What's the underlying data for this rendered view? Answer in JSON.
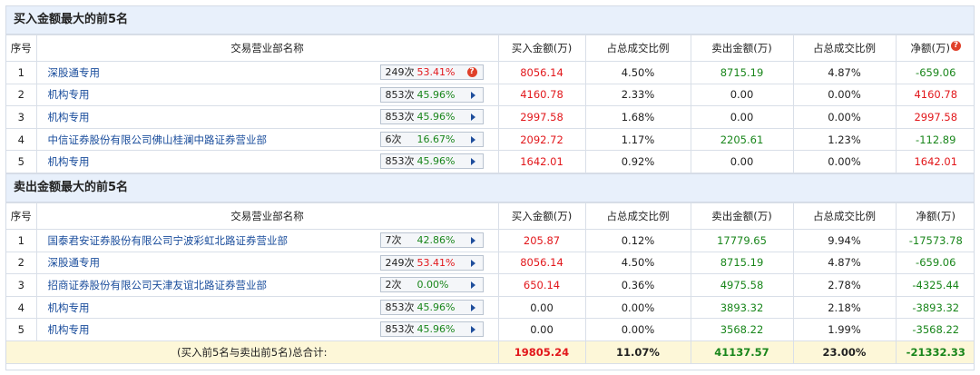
{
  "buy_section": {
    "title": "买入金额最大的前5名",
    "headers": [
      "序号",
      "交易营业部名称",
      "买入金额(万)",
      "占总成交比例",
      "卖出金额(万)",
      "占总成交比例",
      "净额(万)"
    ],
    "rows": [
      {
        "idx": "1",
        "name": "深股通专用",
        "count": "249次",
        "pct": "53.41%",
        "pct_color": "red",
        "question": "?",
        "buy": "8056.14",
        "buy_ratio": "4.50%",
        "sell": "8715.19",
        "sell_ratio": "4.87%",
        "net": "-659.06",
        "net_color": "green"
      },
      {
        "idx": "2",
        "name": "机构专用",
        "count": "853次",
        "pct": "45.96%",
        "pct_color": "green",
        "buy": "4160.78",
        "buy_ratio": "2.33%",
        "sell": "0.00",
        "sell_ratio": "0.00%",
        "net": "4160.78",
        "net_color": "red"
      },
      {
        "idx": "3",
        "name": "机构专用",
        "count": "853次",
        "pct": "45.96%",
        "pct_color": "green",
        "buy": "2997.58",
        "buy_ratio": "1.68%",
        "sell": "0.00",
        "sell_ratio": "0.00%",
        "net": "2997.58",
        "net_color": "red"
      },
      {
        "idx": "4",
        "name": "中信证券股份有限公司佛山桂澜中路证券营业部",
        "count": "6次",
        "pct": "16.67%",
        "pct_color": "green",
        "buy": "2092.72",
        "buy_ratio": "1.17%",
        "sell": "2205.61",
        "sell_ratio": "1.23%",
        "net": "-112.89",
        "net_color": "green"
      },
      {
        "idx": "5",
        "name": "机构专用",
        "count": "853次",
        "pct": "45.96%",
        "pct_color": "green",
        "buy": "1642.01",
        "buy_ratio": "0.92%",
        "sell": "0.00",
        "sell_ratio": "0.00%",
        "net": "1642.01",
        "net_color": "red"
      }
    ]
  },
  "sell_section": {
    "title": "卖出金额最大的前5名",
    "headers": [
      "序号",
      "交易营业部名称",
      "买入金额(万)",
      "占总成交比例",
      "卖出金额(万)",
      "占总成交比例",
      "净额(万)"
    ],
    "rows": [
      {
        "idx": "1",
        "name": "国泰君安证券股份有限公司宁波彩虹北路证券营业部",
        "count": "7次",
        "pct": "42.86%",
        "pct_color": "green",
        "buy": "205.87",
        "buy_ratio": "0.12%",
        "sell": "17779.65",
        "sell_ratio": "9.94%",
        "net": "-17573.78",
        "net_color": "green"
      },
      {
        "idx": "2",
        "name": "深股通专用",
        "count": "249次",
        "pct": "53.41%",
        "pct_color": "red",
        "buy": "8056.14",
        "buy_ratio": "4.50%",
        "sell": "8715.19",
        "sell_ratio": "4.87%",
        "net": "-659.06",
        "net_color": "green"
      },
      {
        "idx": "3",
        "name": "招商证券股份有限公司天津友谊北路证券营业部",
        "count": "2次",
        "pct": "0.00%",
        "pct_color": "green",
        "buy": "650.14",
        "buy_ratio": "0.36%",
        "sell": "4975.58",
        "sell_ratio": "2.78%",
        "net": "-4325.44",
        "net_color": "green"
      },
      {
        "idx": "4",
        "name": "机构专用",
        "count": "853次",
        "pct": "45.96%",
        "pct_color": "green",
        "buy": "0.00",
        "buy_ratio": "0.00%",
        "sell": "3893.32",
        "sell_ratio": "2.18%",
        "net": "-3893.32",
        "net_color": "green"
      },
      {
        "idx": "5",
        "name": "机构专用",
        "count": "853次",
        "pct": "45.96%",
        "pct_color": "green",
        "buy": "0.00",
        "buy_ratio": "0.00%",
        "sell": "3568.22",
        "sell_ratio": "1.99%",
        "net": "-3568.22",
        "net_color": "green"
      }
    ],
    "total": {
      "label": "(买入前5名与卖出前5名)总合计:",
      "buy": "19805.24",
      "buy_ratio": "11.07%",
      "sell": "41137.57",
      "sell_ratio": "23.00%",
      "net": "-21332.33"
    }
  },
  "icons": {
    "expand": "triangle-right-icon",
    "help": "question-mark-icon"
  },
  "colors": {
    "up": "#e2181c",
    "down": "#19861b",
    "link": "#1a4d9c",
    "header_bg": "#e8f0fb",
    "total_bg": "#fdf7d8"
  }
}
